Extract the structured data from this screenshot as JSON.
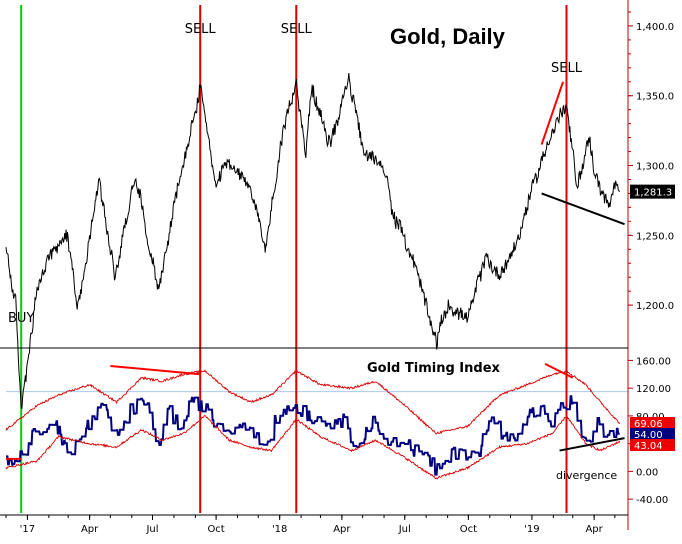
{
  "chart_data": [
    {
      "type": "line",
      "title": "Gold, Daily",
      "y_axis_position": "right",
      "ylim": [
        1170,
        1415
      ],
      "y_ticks": [
        "1,200.0",
        "1,250.0",
        "1,300.0",
        "1,350.0",
        "1,400.0"
      ],
      "last_value_label": "1,281.3",
      "x_tick_labels": [
        "'17",
        "Apr",
        "Jul",
        "Oct",
        "'18",
        "Apr",
        "Jul",
        "Oct",
        "'19",
        "Apr"
      ],
      "series": [
        {
          "x": [
            "2016-12-01",
            "2016-12-15",
            "2016-12-23",
            "2017-01-15",
            "2017-02-01",
            "2017-02-28",
            "2017-03-15",
            "2017-04-15",
            "2017-05-08",
            "2017-06-06",
            "2017-07-10",
            "2017-08-01",
            "2017-09-08",
            "2017-09-20",
            "2017-10-01",
            "2017-10-15",
            "2017-11-15",
            "2017-12-12",
            "2018-01-01",
            "2018-01-25",
            "2018-02-08",
            "2018-02-16",
            "2018-03-15",
            "2018-04-11",
            "2018-05-01",
            "2018-06-01",
            "2018-06-15",
            "2018-07-15",
            "2018-08-16",
            "2018-09-01",
            "2018-10-01",
            "2018-10-26",
            "2018-11-15",
            "2018-12-15",
            "2019-01-01",
            "2019-01-31",
            "2019-02-20",
            "2019-03-07",
            "2019-03-25",
            "2019-04-01",
            "2019-04-23",
            "2019-05-01",
            "2019-05-08"
          ],
          "values": [
            1240,
            1200,
            1125,
            1210,
            1235,
            1250,
            1200,
            1290,
            1220,
            1295,
            1210,
            1270,
            1355,
            1320,
            1280,
            1300,
            1290,
            1240,
            1310,
            1360,
            1310,
            1355,
            1315,
            1365,
            1310,
            1300,
            1265,
            1230,
            1175,
            1200,
            1190,
            1235,
            1220,
            1250,
            1285,
            1325,
            1345,
            1285,
            1320,
            1295,
            1268,
            1285,
            1281.3
          ]
        }
      ],
      "signals": [
        {
          "label": "BUY",
          "date": "2016-12-23",
          "color": "#00cc00"
        },
        {
          "label": "SELL",
          "date": "2017-09-08",
          "color": "#dd0000"
        },
        {
          "label": "SELL",
          "date": "2018-01-25",
          "color": "#dd0000"
        },
        {
          "label": "SELL",
          "date": "2019-02-20",
          "color": "#dd0000"
        }
      ],
      "trendlines": [
        {
          "from": [
            "2019-01-15",
            1315
          ],
          "to": [
            "2019-02-15",
            1360
          ],
          "color": "#ff0000"
        },
        {
          "from": [
            "2019-01-15",
            1280
          ],
          "to": [
            "2019-05-15",
            1258
          ],
          "color": "#000000"
        }
      ]
    },
    {
      "type": "line",
      "title": "Gold Timing Index",
      "y_axis_position": "right",
      "ylim": [
        -60,
        175
      ],
      "y_ticks": [
        "-40.00",
        "0.00",
        "40.00",
        "80.00",
        "120.00",
        "160.00"
      ],
      "reference_line": 115,
      "value_labels": [
        {
          "text": "69.06",
          "color": "#ee0000"
        },
        {
          "text": "54.00",
          "color": "#000080"
        },
        {
          "text": "43.04",
          "color": "#ee0000"
        }
      ],
      "series": [
        {
          "name": "index",
          "color": "#000080",
          "x": [
            "2016-12-01",
            "2016-12-23",
            "2017-01-15",
            "2017-02-15",
            "2017-03-01",
            "2017-04-01",
            "2017-04-20",
            "2017-05-10",
            "2017-06-01",
            "2017-06-20",
            "2017-07-10",
            "2017-07-25",
            "2017-08-10",
            "2017-08-25",
            "2017-09-08",
            "2017-09-25",
            "2017-10-15",
            "2017-11-15",
            "2017-12-12",
            "2018-01-01",
            "2018-01-25",
            "2018-02-15",
            "2018-03-01",
            "2018-04-01",
            "2018-04-20",
            "2018-05-15",
            "2018-06-01",
            "2018-07-01",
            "2018-08-01",
            "2018-08-16",
            "2018-09-15",
            "2018-10-15",
            "2018-11-01",
            "2018-12-01",
            "2018-12-25",
            "2019-01-15",
            "2019-01-31",
            "2019-02-15",
            "2019-02-28",
            "2019-03-10",
            "2019-03-25",
            "2019-04-05",
            "2019-04-20",
            "2019-05-01",
            "2019-05-08"
          ],
          "values": [
            15,
            20,
            60,
            65,
            20,
            70,
            90,
            50,
            90,
            100,
            40,
            90,
            60,
            95,
            100,
            75,
            60,
            70,
            40,
            85,
            95,
            80,
            70,
            75,
            40,
            70,
            50,
            40,
            20,
            0,
            30,
            25,
            75,
            45,
            80,
            90,
            70,
            95,
            100,
            55,
            45,
            70,
            45,
            55,
            54
          ]
        },
        {
          "name": "upper band",
          "color": "#dd0000",
          "x": [
            "2016-12-01",
            "2017-01-15",
            "2017-02-15",
            "2017-04-01",
            "2017-05-10",
            "2017-06-15",
            "2017-07-15",
            "2017-08-15",
            "2017-09-15",
            "2017-10-20",
            "2017-11-20",
            "2017-12-20",
            "2018-01-25",
            "2018-03-01",
            "2018-04-15",
            "2018-05-20",
            "2018-07-01",
            "2018-08-15",
            "2018-09-30",
            "2018-11-15",
            "2018-12-25",
            "2019-01-31",
            "2019-02-20",
            "2019-03-20",
            "2019-04-10",
            "2019-05-08"
          ],
          "values": [
            60,
            95,
            110,
            125,
            100,
            135,
            130,
            140,
            145,
            115,
            100,
            110,
            145,
            125,
            120,
            130,
            95,
            55,
            65,
            110,
            125,
            140,
            145,
            125,
            100,
            69.06
          ]
        },
        {
          "name": "lower band",
          "color": "#dd0000",
          "x": [
            "2016-12-01",
            "2017-01-15",
            "2017-02-15",
            "2017-04-01",
            "2017-05-10",
            "2017-06-15",
            "2017-07-15",
            "2017-08-15",
            "2017-09-15",
            "2017-10-20",
            "2017-11-20",
            "2017-12-20",
            "2018-01-25",
            "2018-03-01",
            "2018-04-15",
            "2018-05-20",
            "2018-07-01",
            "2018-08-15",
            "2018-09-30",
            "2018-11-15",
            "2018-12-25",
            "2019-01-31",
            "2019-02-20",
            "2019-03-20",
            "2019-04-10",
            "2019-05-08"
          ],
          "values": [
            5,
            15,
            50,
            40,
            35,
            60,
            45,
            55,
            80,
            45,
            35,
            30,
            75,
            50,
            30,
            45,
            20,
            -10,
            5,
            35,
            40,
            55,
            80,
            40,
            30,
            43.04
          ]
        }
      ],
      "signals": [
        {
          "date": "2016-12-23",
          "color": "#00cc00"
        },
        {
          "date": "2017-09-08",
          "color": "#dd0000"
        },
        {
          "date": "2018-01-25",
          "color": "#dd0000"
        },
        {
          "date": "2019-02-20",
          "color": "#dd0000"
        }
      ],
      "trendlines": [
        {
          "from": [
            "2017-05-01",
            152
          ],
          "to": [
            "2017-09-08",
            140
          ],
          "color": "#ff0000"
        },
        {
          "from": [
            "2019-01-20",
            155
          ],
          "to": [
            "2019-03-01",
            135
          ],
          "color": "#ff0000"
        },
        {
          "from": [
            "2016-12-01",
            18
          ],
          "to": [
            "2016-12-23",
            18
          ],
          "color": "#ff0000"
        },
        {
          "from": [
            "2019-02-10",
            30
          ],
          "to": [
            "2019-05-15",
            48
          ],
          "color": "#000000"
        }
      ],
      "annotations": [
        {
          "text": "divergence"
        }
      ]
    }
  ]
}
